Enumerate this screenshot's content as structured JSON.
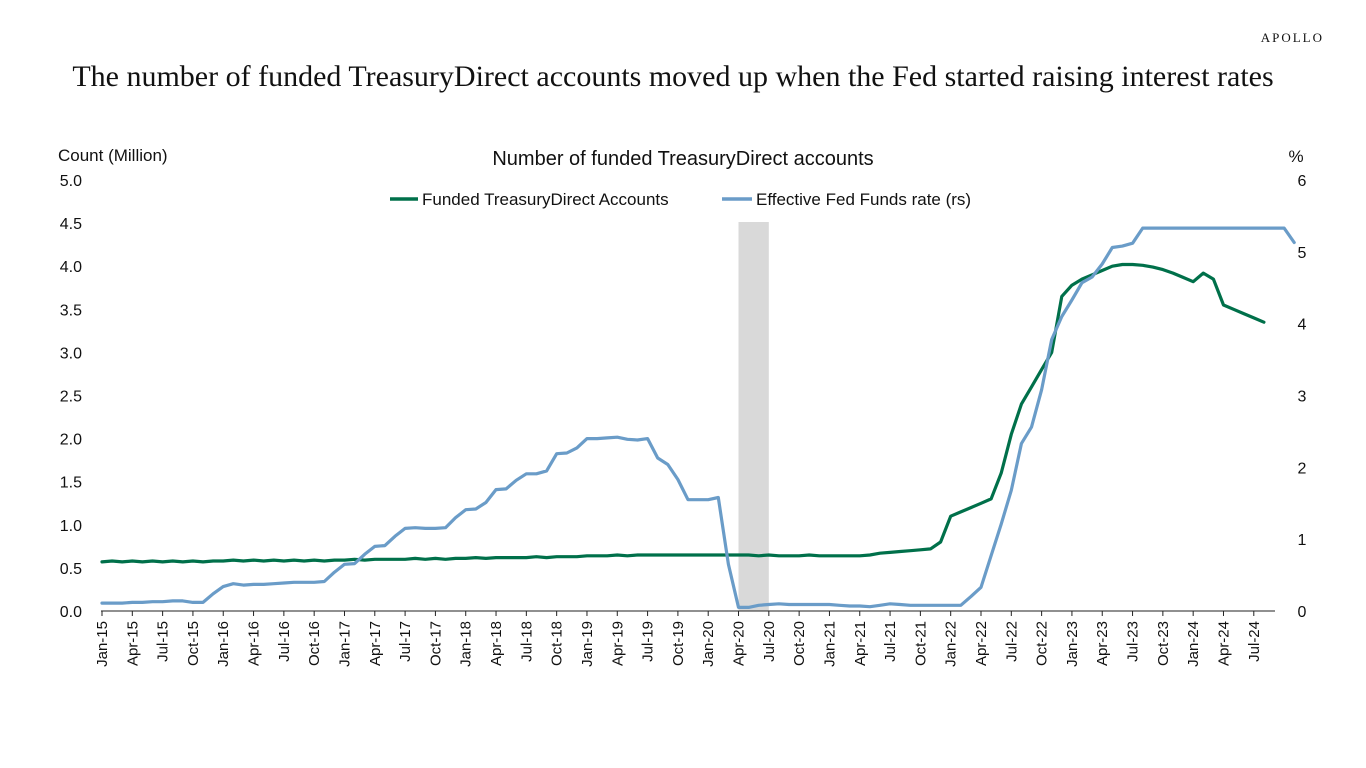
{
  "brand": "APOLLO",
  "headline": "The number of  funded TreasuryDirect accounts moved up when the Fed started raising interest rates",
  "chart_data": {
    "type": "line",
    "title": "Number of funded TreasuryDirect accounts",
    "ylabel_left": "Count (Million)",
    "ylabel_right": "%",
    "ylim_left": [
      0,
      5
    ],
    "ylim_right": [
      0,
      6
    ],
    "yticks_left": [
      "0.0",
      "0.5",
      "1.0",
      "1.5",
      "2.0",
      "2.5",
      "3.0",
      "3.5",
      "4.0",
      "4.5",
      "5.0"
    ],
    "yticks_right": [
      "0",
      "1",
      "2",
      "3",
      "4",
      "5",
      "6"
    ],
    "x_start": "2015-01",
    "xticks": [
      "Jan-15",
      "Apr-15",
      "Jul-15",
      "Oct-15",
      "Jan-16",
      "Apr-16",
      "Jul-16",
      "Oct-16",
      "Jan-17",
      "Apr-17",
      "Jul-17",
      "Oct-17",
      "Jan-18",
      "Apr-18",
      "Jul-18",
      "Oct-18",
      "Jan-19",
      "Apr-19",
      "Jul-19",
      "Oct-19",
      "Jan-20",
      "Apr-20",
      "Jul-20",
      "Oct-20",
      "Jan-21",
      "Apr-21",
      "Jul-21",
      "Oct-21",
      "Jan-22",
      "Apr-22",
      "Jul-22",
      "Oct-22",
      "Jan-23",
      "Apr-23",
      "Jul-23",
      "Oct-23",
      "Jan-24",
      "Apr-24",
      "Jul-24"
    ],
    "recession": {
      "start": "2020-04",
      "end": "2020-07"
    },
    "legend_position": "top-center",
    "series": [
      {
        "name": "Funded TreasuryDirect Accounts",
        "axis": "left",
        "color": "#00704a",
        "values": [
          0.57,
          0.58,
          0.57,
          0.58,
          0.57,
          0.58,
          0.57,
          0.58,
          0.57,
          0.58,
          0.57,
          0.58,
          0.58,
          0.59,
          0.58,
          0.59,
          0.58,
          0.59,
          0.58,
          0.59,
          0.58,
          0.59,
          0.58,
          0.59,
          0.59,
          0.6,
          0.59,
          0.6,
          0.6,
          0.6,
          0.6,
          0.61,
          0.6,
          0.61,
          0.6,
          0.61,
          0.61,
          0.62,
          0.61,
          0.62,
          0.62,
          0.62,
          0.62,
          0.63,
          0.62,
          0.63,
          0.63,
          0.63,
          0.64,
          0.64,
          0.64,
          0.65,
          0.64,
          0.65,
          0.65,
          0.65,
          0.65,
          0.65,
          0.65,
          0.65,
          0.65,
          0.65,
          0.65,
          0.65,
          0.65,
          0.64,
          0.65,
          0.64,
          0.64,
          0.64,
          0.65,
          0.64,
          0.64,
          0.64,
          0.64,
          0.64,
          0.65,
          0.67,
          0.68,
          0.69,
          0.7,
          0.71,
          0.72,
          0.8,
          1.1,
          1.15,
          1.2,
          1.25,
          1.3,
          1.6,
          2.05,
          2.4,
          2.6,
          2.8,
          3.0,
          3.65,
          3.78,
          3.85,
          3.9,
          3.95,
          4.0,
          4.02,
          4.02,
          4.01,
          3.99,
          3.96,
          3.92,
          3.87,
          3.82,
          3.92,
          3.85,
          3.55,
          3.5,
          3.45,
          3.4,
          3.35
        ]
      },
      {
        "name": "Effective Fed Funds rate (rs)",
        "axis": "right",
        "color": "#6a9cc8",
        "values": [
          0.11,
          0.11,
          0.11,
          0.12,
          0.12,
          0.13,
          0.13,
          0.14,
          0.14,
          0.12,
          0.12,
          0.24,
          0.34,
          0.38,
          0.36,
          0.37,
          0.37,
          0.38,
          0.39,
          0.4,
          0.4,
          0.4,
          0.41,
          0.54,
          0.65,
          0.66,
          0.79,
          0.9,
          0.91,
          1.04,
          1.15,
          1.16,
          1.15,
          1.15,
          1.16,
          1.3,
          1.41,
          1.42,
          1.51,
          1.69,
          1.7,
          1.82,
          1.91,
          1.91,
          1.95,
          2.19,
          2.2,
          2.27,
          2.4,
          2.4,
          2.41,
          2.42,
          2.39,
          2.38,
          2.4,
          2.13,
          2.04,
          1.83,
          1.55,
          1.55,
          1.55,
          1.58,
          0.65,
          0.05,
          0.05,
          0.08,
          0.09,
          0.1,
          0.09,
          0.09,
          0.09,
          0.09,
          0.09,
          0.08,
          0.07,
          0.07,
          0.06,
          0.08,
          0.1,
          0.09,
          0.08,
          0.08,
          0.08,
          0.08,
          0.08,
          0.08,
          0.2,
          0.33,
          0.77,
          1.21,
          1.68,
          2.33,
          2.56,
          3.08,
          3.78,
          4.1,
          4.33,
          4.57,
          4.65,
          4.83,
          5.06,
          5.08,
          5.12,
          5.33,
          5.33,
          5.33,
          5.33,
          5.33,
          5.33,
          5.33,
          5.33,
          5.33,
          5.33,
          5.33,
          5.33,
          5.33,
          5.33,
          5.33,
          5.13
        ]
      }
    ]
  }
}
